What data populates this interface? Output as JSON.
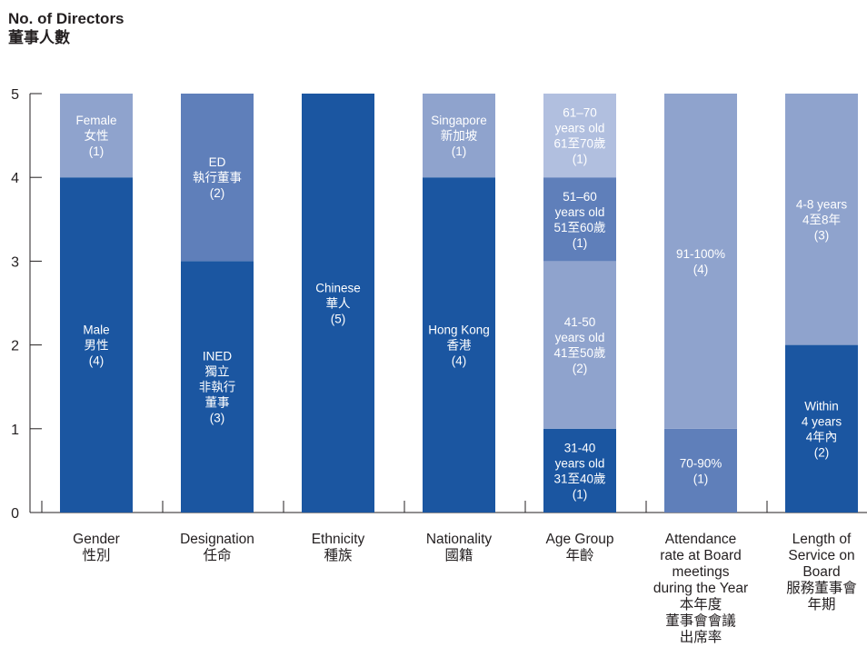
{
  "chart_data": {
    "type": "bar",
    "stacked": true,
    "title": "No. of Directors",
    "title_zh": "董事人數",
    "ylim": [
      0,
      5
    ],
    "yticks": [
      0,
      1,
      2,
      3,
      4,
      5
    ],
    "grid": false,
    "legend": "none",
    "colors": {
      "dark": "#1b56a1",
      "mid": "#5f7fba",
      "light": "#8fa3cd",
      "pale": "#b1bfdf"
    },
    "categories": [
      {
        "label": [
          "Gender",
          "性別"
        ],
        "segments": [
          {
            "value": 4,
            "color": "dark",
            "label": [
              "Male",
              "男性",
              "(4)"
            ]
          },
          {
            "value": 1,
            "color": "light",
            "label": [
              "Female",
              "女性",
              "(1)"
            ]
          }
        ]
      },
      {
        "label": [
          "Designation",
          "任命"
        ],
        "segments": [
          {
            "value": 3,
            "color": "dark",
            "label": [
              "INED",
              "獨立",
              "非執行",
              "董事",
              "(3)"
            ]
          },
          {
            "value": 2,
            "color": "mid",
            "label": [
              "ED",
              "執行董事",
              "(2)"
            ]
          }
        ]
      },
      {
        "label": [
          "Ethnicity",
          "種族"
        ],
        "segments": [
          {
            "value": 5,
            "color": "dark",
            "label": [
              "Chinese",
              "華人",
              "(5)"
            ]
          }
        ]
      },
      {
        "label": [
          "Nationality",
          "國籍"
        ],
        "segments": [
          {
            "value": 4,
            "color": "dark",
            "label": [
              "Hong Kong",
              "香港",
              "(4)"
            ]
          },
          {
            "value": 1,
            "color": "light",
            "label": [
              "Singapore",
              "新加坡",
              "(1)"
            ]
          }
        ]
      },
      {
        "label": [
          "Age Group",
          "年齡"
        ],
        "segments": [
          {
            "value": 1,
            "color": "dark",
            "label": [
              "31-40",
              "years old",
              "31至40歲",
              "(1)"
            ]
          },
          {
            "value": 2,
            "color": "light",
            "label": [
              "41-50",
              "years old",
              "41至50歲",
              "(2)"
            ]
          },
          {
            "value": 1,
            "color": "mid",
            "label": [
              "51–60",
              "years old",
              "51至60歲",
              "(1)"
            ]
          },
          {
            "value": 1,
            "color": "pale",
            "label": [
              "61–70",
              "years old",
              "61至70歲",
              "(1)"
            ]
          }
        ]
      },
      {
        "label": [
          "Attendance",
          "rate at Board",
          "meetings",
          "during the Year",
          "本年度",
          "董事會會議",
          "出席率"
        ],
        "segments": [
          {
            "value": 1,
            "color": "mid",
            "label": [
              "70-90%",
              "(1)"
            ]
          },
          {
            "value": 4,
            "color": "light",
            "label": [
              "91-100%",
              "(4)"
            ]
          }
        ]
      },
      {
        "label": [
          "Length of",
          "Service on",
          "Board",
          "服務董事會",
          "年期"
        ],
        "segments": [
          {
            "value": 2,
            "color": "dark",
            "label": [
              "Within",
              "4 years",
              "4年內",
              "(2)"
            ]
          },
          {
            "value": 3,
            "color": "light",
            "label": [
              "4-8 years",
              "4至8年",
              "(3)"
            ]
          }
        ]
      }
    ]
  }
}
